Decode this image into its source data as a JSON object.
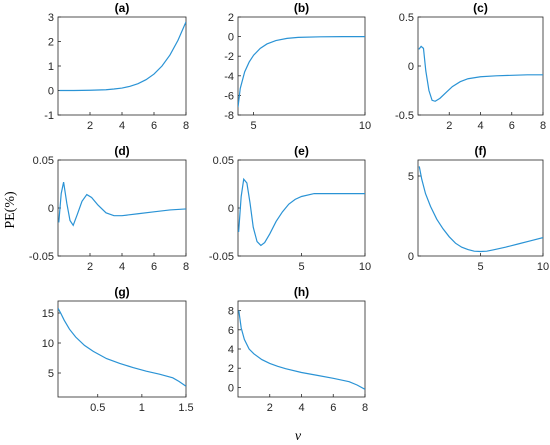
{
  "figure": {
    "ylabel": "PE(%)",
    "xlabel": "v",
    "line_color": "#2a93d5"
  },
  "chart_data": [
    {
      "type": "line",
      "title": "(a)",
      "xlim": [
        0,
        8
      ],
      "ylim": [
        -1,
        3
      ],
      "xticks": [
        2,
        4,
        6,
        8
      ],
      "yticks": [
        -1,
        0,
        1,
        2,
        3
      ],
      "series": [
        {
          "x": [
            0.1,
            1,
            2,
            3,
            3.5,
            4,
            4.5,
            5,
            5.5,
            6,
            6.5,
            7,
            7.5,
            8
          ],
          "y": [
            0,
            0,
            0.01,
            0.03,
            0.06,
            0.1,
            0.17,
            0.28,
            0.44,
            0.67,
            1.0,
            1.45,
            2.05,
            2.8
          ]
        }
      ]
    },
    {
      "type": "line",
      "title": "(b)",
      "xlim": [
        4.3,
        10
      ],
      "ylim": [
        -8,
        2
      ],
      "xticks": [
        5,
        10
      ],
      "yticks": [
        -8,
        -6,
        -4,
        -2,
        0,
        2
      ],
      "series": [
        {
          "x": [
            4.3,
            4.4,
            4.6,
            4.8,
            5,
            5.3,
            5.6,
            6,
            6.5,
            7,
            8,
            9,
            10
          ],
          "y": [
            -7.2,
            -5.3,
            -3.6,
            -2.6,
            -1.9,
            -1.2,
            -0.75,
            -0.4,
            -0.18,
            -0.08,
            -0.02,
            0,
            0
          ]
        }
      ]
    },
    {
      "type": "line",
      "title": "(c)",
      "xlim": [
        0,
        8
      ],
      "ylim": [
        -0.5,
        0.5
      ],
      "xticks": [
        2,
        4,
        6,
        8
      ],
      "yticks": [
        -0.5,
        0,
        0.5
      ],
      "series": [
        {
          "x": [
            0.05,
            0.2,
            0.35,
            0.5,
            0.7,
            0.9,
            1.1,
            1.4,
            1.8,
            2.2,
            2.7,
            3.2,
            4,
            5,
            6,
            7,
            8
          ],
          "y": [
            0.17,
            0.2,
            0.18,
            -0.05,
            -0.25,
            -0.35,
            -0.36,
            -0.33,
            -0.27,
            -0.21,
            -0.16,
            -0.13,
            -0.11,
            -0.1,
            -0.095,
            -0.09,
            -0.09
          ]
        }
      ]
    },
    {
      "type": "line",
      "title": "(d)",
      "xlim": [
        0,
        8
      ],
      "ylim": [
        -0.05,
        0.05
      ],
      "xticks": [
        2,
        4,
        6,
        8
      ],
      "yticks": [
        -0.05,
        0,
        0.05
      ],
      "series": [
        {
          "x": [
            0.05,
            0.2,
            0.35,
            0.55,
            0.75,
            0.95,
            1.2,
            1.5,
            1.8,
            2.1,
            2.5,
            3,
            3.5,
            4,
            5,
            6,
            7,
            8
          ],
          "y": [
            -0.015,
            0.015,
            0.027,
            0.005,
            -0.013,
            -0.018,
            -0.007,
            0.007,
            0.014,
            0.011,
            0.003,
            -0.005,
            -0.008,
            -0.008,
            -0.006,
            -0.004,
            -0.002,
            -0.001
          ]
        }
      ]
    },
    {
      "type": "line",
      "title": "(e)",
      "xlim": [
        0,
        10
      ],
      "ylim": [
        -0.05,
        0.05
      ],
      "xticks": [
        5,
        10
      ],
      "yticks": [
        -0.05,
        0,
        0.05
      ],
      "series": [
        {
          "x": [
            0.05,
            0.25,
            0.45,
            0.7,
            0.95,
            1.2,
            1.5,
            1.8,
            2.1,
            2.5,
            3,
            3.5,
            4,
            4.5,
            5,
            6,
            7,
            8,
            9,
            10
          ],
          "y": [
            -0.025,
            0.012,
            0.03,
            0.026,
            0.005,
            -0.02,
            -0.035,
            -0.039,
            -0.036,
            -0.027,
            -0.014,
            -0.004,
            0.004,
            0.009,
            0.012,
            0.015,
            0.015,
            0.015,
            0.015,
            0.015
          ]
        }
      ]
    },
    {
      "type": "line",
      "title": "(f)",
      "xlim": [
        0,
        10
      ],
      "ylim": [
        0,
        6
      ],
      "xticks": [
        5,
        10
      ],
      "yticks": [
        0,
        5
      ],
      "series": [
        {
          "x": [
            0.1,
            0.3,
            0.6,
            1,
            1.5,
            2,
            2.5,
            3,
            3.5,
            4,
            4.5,
            5,
            5.5,
            6,
            7,
            8,
            9,
            10
          ],
          "y": [
            5.6,
            4.8,
            3.9,
            3.1,
            2.3,
            1.7,
            1.2,
            0.8,
            0.55,
            0.4,
            0.3,
            0.28,
            0.3,
            0.38,
            0.55,
            0.75,
            0.95,
            1.15
          ]
        }
      ]
    },
    {
      "type": "line",
      "title": "(g)",
      "xlim": [
        0.05,
        1.5
      ],
      "ylim": [
        1,
        17
      ],
      "xticks": [
        0.5,
        1,
        1.5
      ],
      "yticks": [
        5,
        10,
        15
      ],
      "series": [
        {
          "x": [
            0.05,
            0.08,
            0.12,
            0.18,
            0.25,
            0.35,
            0.45,
            0.6,
            0.75,
            0.9,
            1.05,
            1.2,
            1.35,
            1.42,
            1.5
          ],
          "y": [
            15.8,
            15.0,
            13.8,
            12.3,
            11.0,
            9.6,
            8.6,
            7.4,
            6.6,
            5.9,
            5.3,
            4.8,
            4.2,
            3.6,
            2.8
          ]
        }
      ]
    },
    {
      "type": "line",
      "title": "(h)",
      "xlim": [
        0,
        8
      ],
      "ylim": [
        -1,
        9
      ],
      "xticks": [
        2,
        4,
        6,
        8
      ],
      "yticks": [
        0,
        2,
        4,
        6,
        8
      ],
      "series": [
        {
          "x": [
            0.05,
            0.2,
            0.4,
            0.7,
            1,
            1.5,
            2,
            2.5,
            3,
            4,
            5,
            6,
            7,
            7.5,
            8
          ],
          "y": [
            8.0,
            6.2,
            5.0,
            4.0,
            3.5,
            2.9,
            2.5,
            2.2,
            1.95,
            1.55,
            1.25,
            0.95,
            0.6,
            0.25,
            -0.2
          ]
        }
      ]
    }
  ]
}
